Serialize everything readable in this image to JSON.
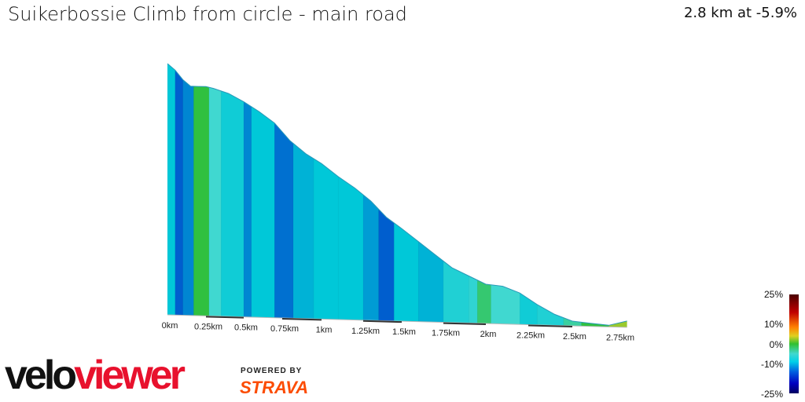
{
  "header": {
    "title": "Suikerbossie Climb from circle - main road",
    "summary": "2.8 km at -5.9%"
  },
  "branding": {
    "logo_part1": "velo",
    "logo_part2": "viewer",
    "powered_by": "POWERED BY",
    "strava": "STRAVA"
  },
  "legend": {
    "labels": [
      "25%",
      "10%",
      "0%",
      "-10%",
      "-25%"
    ],
    "colorscale": [
      "#4a0000",
      "#c00000",
      "#ff8000",
      "#e0d020",
      "#30c030",
      "#40d8d0",
      "#00d0e8",
      "#0060e0",
      "#0000c0",
      "#000060"
    ]
  },
  "chart_data": {
    "type": "area",
    "title": "Suikerbossie Climb from circle - main road",
    "xlabel": "",
    "ylabel": "",
    "x_ticks": [
      "0km",
      "0.25km",
      "0.5km",
      "0.75km",
      "1km",
      "1.25km",
      "1.5km",
      "1.75km",
      "2km",
      "2.25km",
      "2.5km",
      "2.75km"
    ],
    "xlim": [
      0,
      2.8
    ],
    "profile": {
      "distance_km": [
        0,
        0.05,
        0.1,
        0.15,
        0.2,
        0.25,
        0.3,
        0.4,
        0.5,
        0.6,
        0.7,
        0.8,
        0.9,
        1.0,
        1.1,
        1.2,
        1.3,
        1.4,
        1.5,
        1.6,
        1.7,
        1.8,
        1.9,
        2.0,
        2.1,
        2.2,
        2.3,
        2.4,
        2.5,
        2.6,
        2.7,
        2.8
      ],
      "relative_elevation_m": [
        160,
        156,
        150,
        146,
        146,
        146,
        145,
        142,
        137,
        131,
        124,
        113,
        105,
        99,
        91,
        84,
        76,
        66,
        59,
        51,
        43,
        35,
        30,
        25,
        24,
        20,
        13,
        7,
        3,
        2,
        1,
        4
      ]
    },
    "gradient_segments": [
      {
        "from": 0,
        "to": 0.05,
        "gradient": -7
      },
      {
        "from": 0.05,
        "to": 0.1,
        "gradient": -12
      },
      {
        "from": 0.1,
        "to": 0.17,
        "gradient": -10
      },
      {
        "from": 0.17,
        "to": 0.27,
        "gradient": 0
      },
      {
        "from": 0.27,
        "to": 0.35,
        "gradient": -3
      },
      {
        "from": 0.35,
        "to": 0.5,
        "gradient": -6
      },
      {
        "from": 0.5,
        "to": 0.55,
        "gradient": -10
      },
      {
        "from": 0.55,
        "to": 0.7,
        "gradient": -7
      },
      {
        "from": 0.7,
        "to": 0.82,
        "gradient": -11
      },
      {
        "from": 0.82,
        "to": 0.95,
        "gradient": -8
      },
      {
        "from": 0.95,
        "to": 1.1,
        "gradient": -7
      },
      {
        "from": 1.1,
        "to": 1.25,
        "gradient": -7
      },
      {
        "from": 1.25,
        "to": 1.35,
        "gradient": -9
      },
      {
        "from": 1.35,
        "to": 1.45,
        "gradient": -12
      },
      {
        "from": 1.45,
        "to": 1.6,
        "gradient": -7
      },
      {
        "from": 1.6,
        "to": 1.75,
        "gradient": -8
      },
      {
        "from": 1.75,
        "to": 1.9,
        "gradient": -5
      },
      {
        "from": 1.9,
        "to": 1.95,
        "gradient": -4
      },
      {
        "from": 1.95,
        "to": 2.03,
        "gradient": -1
      },
      {
        "from": 2.03,
        "to": 2.2,
        "gradient": -3
      },
      {
        "from": 2.2,
        "to": 2.3,
        "gradient": -6
      },
      {
        "from": 2.3,
        "to": 2.45,
        "gradient": -5
      },
      {
        "from": 2.45,
        "to": 2.55,
        "gradient": -2
      },
      {
        "from": 2.55,
        "to": 2.7,
        "gradient": 0
      },
      {
        "from": 2.7,
        "to": 2.8,
        "gradient": 3
      }
    ]
  }
}
